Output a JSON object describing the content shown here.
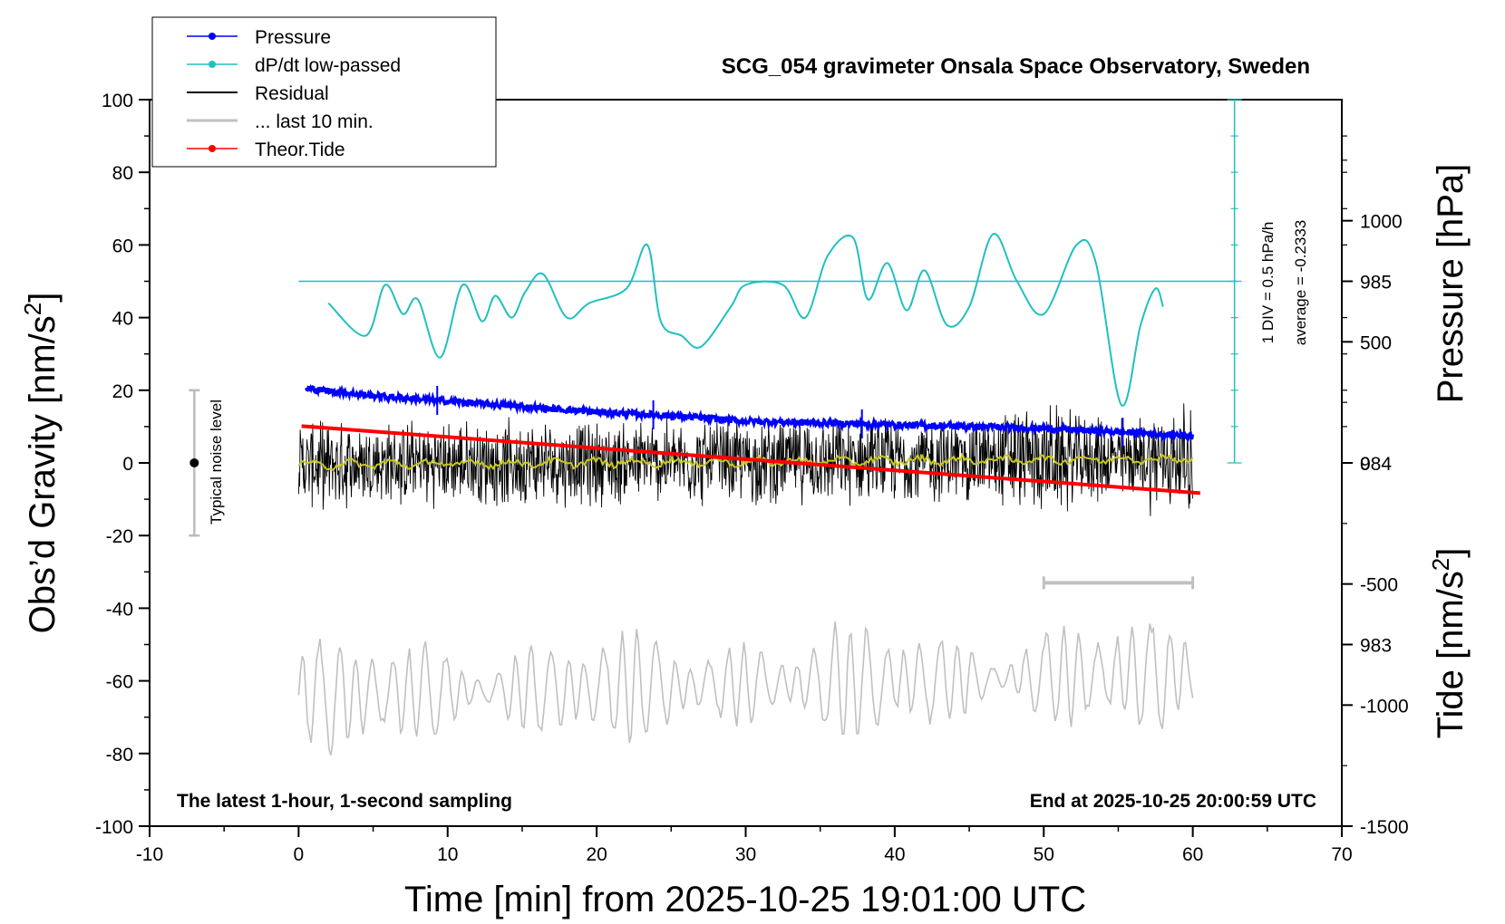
{
  "chart_data": {
    "type": "line",
    "title": "SCG_054 gravimeter Onsala Space Observatory, Sweden",
    "xlabel": "Time [min] from 2025-10-25 19:01:00 UTC",
    "ylabel_main": "Obs’d Gravity [nm/s",
    "ylabel_main_tail": "]",
    "ylabel_pressure": "Pressure [hPa]",
    "ylabel_tide": "Tide [nm/s",
    "ylabel_tide_tail": "]",
    "superscript": "2",
    "xlim": [
      -10,
      70
    ],
    "ylim": [
      -100,
      100
    ],
    "pressure_lim": [
      982.0,
      986.0
    ],
    "tide_lim": [
      -1500,
      1500
    ],
    "x_ticks": [
      "-10",
      "0",
      "10",
      "20",
      "30",
      "40",
      "50",
      "60",
      "70"
    ],
    "y_ticks": [
      "100",
      "80",
      "60",
      "40",
      "20",
      "0",
      "-20",
      "-40",
      "-60",
      "-80",
      "-100"
    ],
    "pressure_ticks": [
      "985",
      "984",
      "983"
    ],
    "tide_ticks": [
      "1000",
      "500",
      "0",
      "-500",
      "-1000",
      "-1500"
    ],
    "legend": {
      "pressure": "Pressure",
      "dpdt": "dP/dt low-passed",
      "residual": "Residual",
      "last10": "... last 10 min.",
      "tide": "Theor.Tide"
    },
    "colors": {
      "pressure": "#0000ff",
      "dpdt": "#20c0c0",
      "residual": "#000000",
      "residual_smooth": "#c8c820",
      "last10": "#c0c0c0",
      "tide": "#ff0000"
    },
    "annotations": {
      "noise": "Typical noise level",
      "div": "1 DIV = 0.5 hPa/h",
      "average": "average = -0.2333",
      "latest": "The latest 1-hour, 1-second sampling",
      "end": "End at 2025-10-25 20:00:59 UTC"
    },
    "noise_bar": [
      -20,
      20
    ],
    "last10_window_min": [
      50,
      60
    ],
    "series": [
      {
        "name": "Pressure",
        "unit": "hPa",
        "x": [
          0.5,
          5,
          10,
          15,
          20,
          25,
          30,
          35,
          40,
          45,
          50,
          55,
          60
        ],
        "values": [
          984.41,
          984.37,
          984.34,
          984.31,
          984.28,
          984.26,
          984.23,
          984.22,
          984.21,
          984.2,
          984.19,
          984.17,
          984.15
        ]
      },
      {
        "name": "dP/dt low-passed",
        "unit": "nm/s2 axis",
        "x": [
          2,
          4.5,
          5.8,
          7,
          8,
          9.5,
          11,
          12.3,
          13.2,
          14.3,
          15.2,
          16.4,
          18,
          19.5,
          22,
          23.4,
          24.3,
          25.7,
          27,
          29,
          30,
          32.5,
          34,
          35.5,
          37.2,
          38.2,
          39.5,
          40.8,
          42,
          43.5,
          45,
          46.6,
          48.2,
          50,
          52.2,
          53.5,
          55.2,
          56.5,
          57.5,
          58
        ],
        "values": [
          44,
          35,
          49,
          41,
          45,
          29,
          49,
          39,
          46,
          40,
          47,
          52,
          40,
          44,
          48,
          60,
          39,
          35,
          32,
          43,
          49,
          49,
          40,
          57,
          62,
          45,
          55,
          42,
          53,
          38,
          43,
          63,
          50,
          41,
          60,
          55,
          16,
          38,
          48,
          43
        ]
      },
      {
        "name": "Residual",
        "unit": "nm/s2",
        "x": [
          0,
          10,
          20,
          30,
          40,
          50,
          60
        ],
        "values": [
          -0.5,
          -0.2,
          0.1,
          0.3,
          0.6,
          0.9,
          1.2
        ],
        "envelope": [
          -20,
          20
        ]
      },
      {
        "name": "... last 10 min.",
        "unit": "nm/s2 axis",
        "x": [
          0,
          60
        ],
        "values": [
          -64,
          -58
        ],
        "range": [
          -82,
          -43
        ]
      },
      {
        "name": "Theor.Tide",
        "unit": "nm/s2",
        "x": [
          0.2,
          60.5
        ],
        "values": [
          152,
          -125
        ]
      }
    ]
  }
}
